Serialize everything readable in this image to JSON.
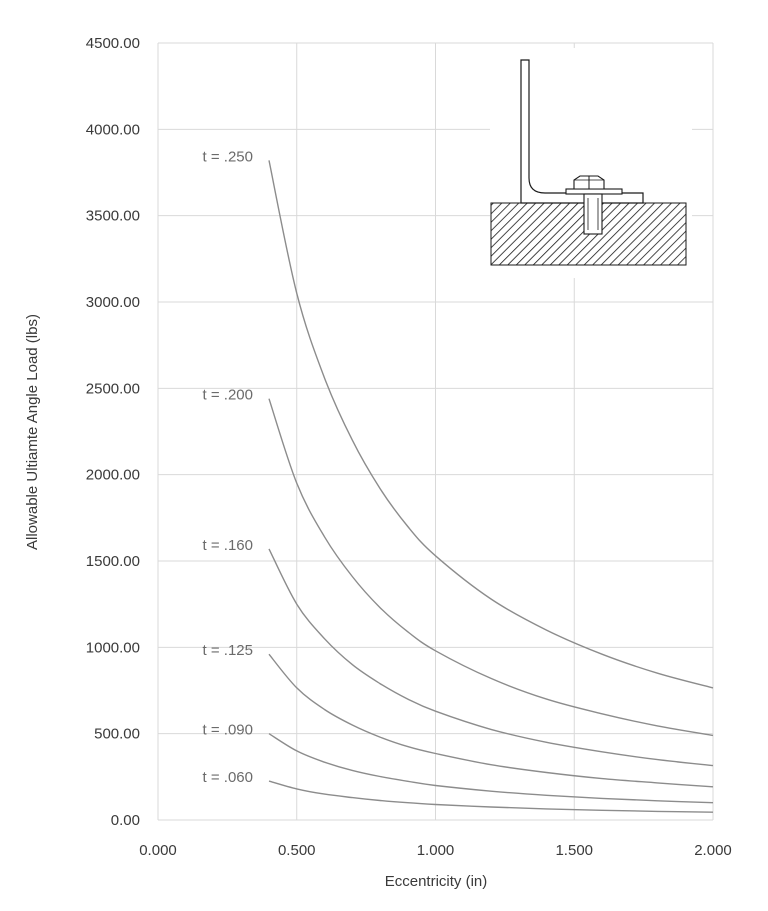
{
  "chart_data": {
    "type": "line",
    "xlabel": "Eccentricity (in)",
    "ylabel": "Allowable Ultiamte Angle Load (lbs)",
    "xlim": [
      0,
      2
    ],
    "ylim": [
      0,
      4500
    ],
    "grid": true,
    "x_ticks": [
      "0.000",
      "0.500",
      "1.000",
      "1.500",
      "2.000"
    ],
    "y_ticks": [
      "0.00",
      "500.00",
      "1000.00",
      "1500.00",
      "2000.00",
      "2500.00",
      "3000.00",
      "3500.00",
      "4000.00",
      "4500.00"
    ],
    "x": [
      0.4,
      0.5,
      0.6,
      0.7,
      0.8,
      0.9,
      1.0,
      1.2,
      1.4,
      1.6,
      1.8,
      2.0
    ],
    "series": [
      {
        "name": "t = .250",
        "values": [
          3820,
          3050,
          2560,
          2200,
          1920,
          1700,
          1530,
          1280,
          1100,
          960,
          850,
          765
        ]
      },
      {
        "name": "t = .200",
        "values": [
          2440,
          1950,
          1640,
          1410,
          1230,
          1090,
          980,
          820,
          700,
          615,
          545,
          490
        ]
      },
      {
        "name": "t = .160",
        "values": [
          1570,
          1250,
          1050,
          900,
          790,
          700,
          630,
          525,
          450,
          395,
          350,
          315
        ]
      },
      {
        "name": "t = .125",
        "values": [
          960,
          765,
          640,
          550,
          480,
          425,
          385,
          320,
          275,
          240,
          215,
          192
        ]
      },
      {
        "name": "t = .090",
        "values": [
          500,
          400,
          335,
          287,
          252,
          224,
          200,
          167,
          143,
          125,
          111,
          100
        ]
      },
      {
        "name": "t = .060",
        "values": [
          225,
          180,
          150,
          130,
          113,
          100,
          90,
          75,
          64,
          56,
          50,
          45
        ]
      }
    ],
    "inset_graphic": "angle-bracket-bolted-to-hatched-base"
  }
}
